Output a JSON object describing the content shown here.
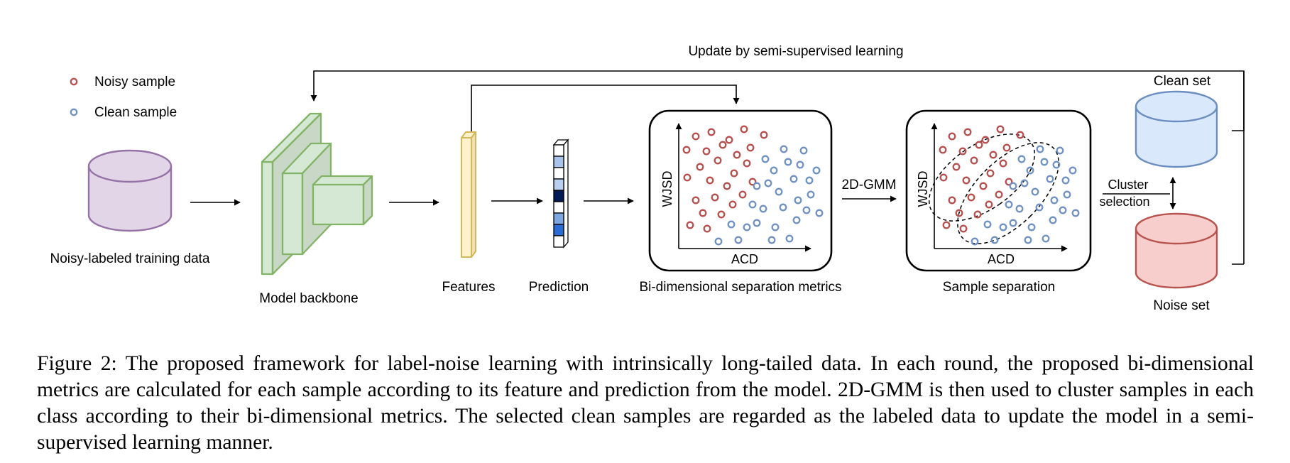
{
  "figure": {
    "update_label": "Update by semi-supervised learning",
    "legend": {
      "noisy_label": "Noisy sample",
      "clean_label": "Clean sample"
    },
    "training_data_label": "Noisy-labeled training data",
    "backbone_label": "Model backbone",
    "features_label": "Features",
    "prediction_label": "Prediction",
    "metrics_panel": {
      "label": "Bi-dimensional separation metrics",
      "y_axis": "WJSD",
      "x_axis": "ACD"
    },
    "gmm_label": "2D-GMM",
    "separation_panel": {
      "label": "Sample separation",
      "y_axis": "WJSD",
      "x_axis": "ACD"
    },
    "cluster_label_1": "Cluster",
    "cluster_label_2": "selection",
    "clean_set_label": "Clean set",
    "noise_set_label": "Noise set"
  },
  "colors": {
    "noisy": "#b5504f",
    "clean": "#7091c4",
    "purple_fill": "#e1d5e7",
    "purple_stroke": "#9673a6",
    "green_fill": "#d5e8d4",
    "green_stroke": "#82b366",
    "yellow_fill": "#fff2cc",
    "yellow_stroke": "#d6b656",
    "blue_fill": "#dae8fc",
    "blue_stroke": "#6c8ebf",
    "red_fill": "#f8cecc",
    "red_stroke": "#b85450"
  },
  "caption": "Figure 2: The proposed framework for label-noise learning with intrinsically long-tailed data. In each round, the proposed bi-dimensional metrics are calculated for each sample according to its feature and prediction from the model. 2D-GMM is then used to cluster samples in each class according to their bi-dimensional metrics. The selected clean samples are regarded as the labeled data to update the model in a semi-supervised learning manner."
}
